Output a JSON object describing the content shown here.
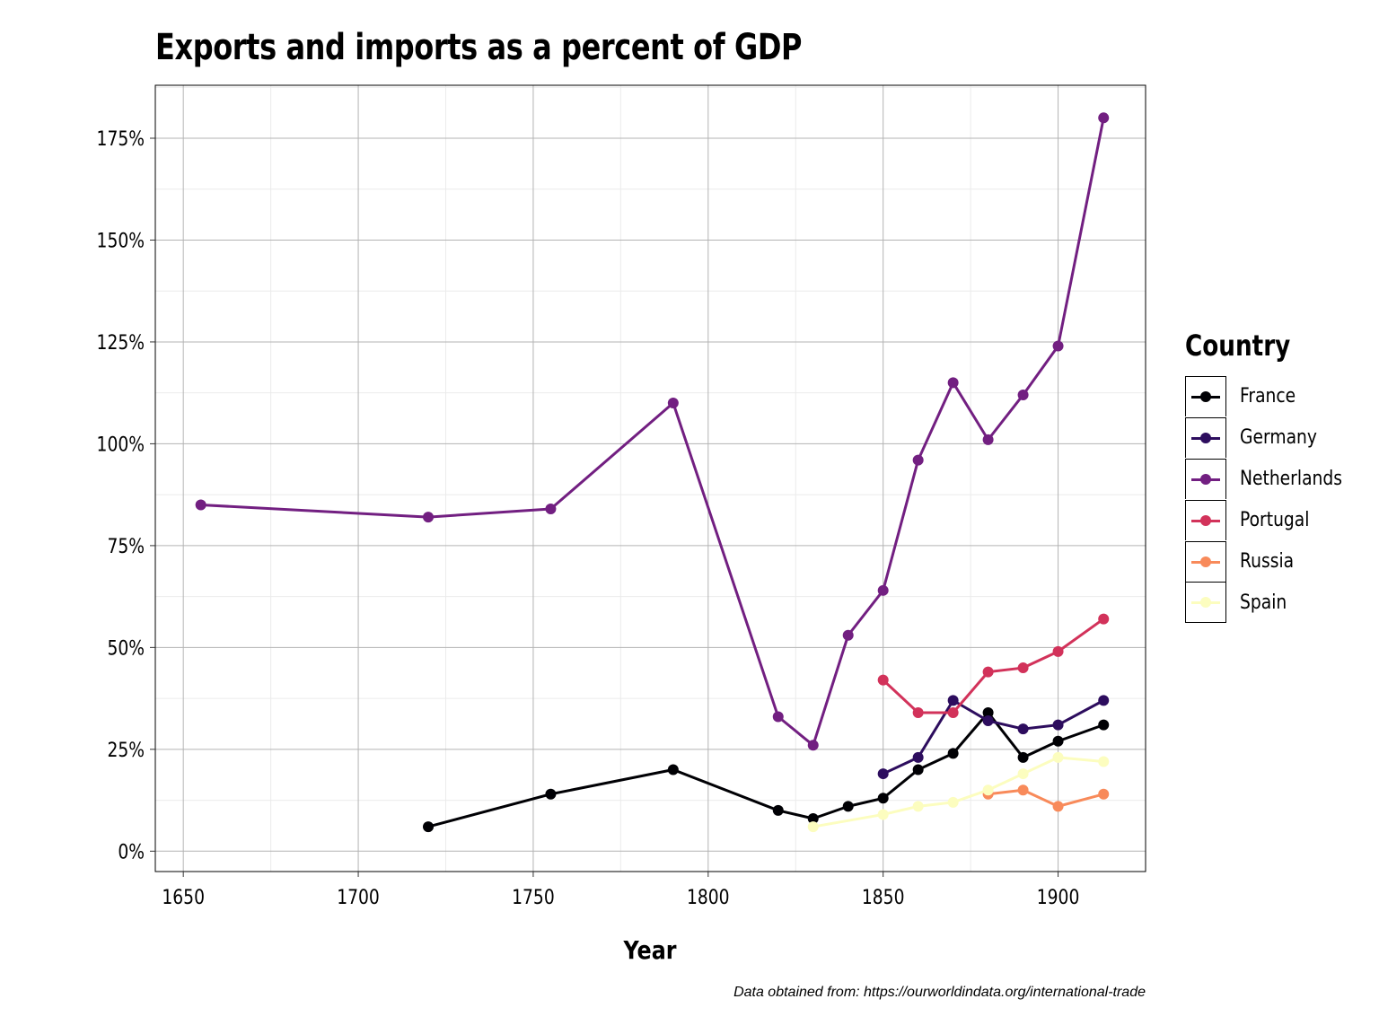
{
  "chart_data": {
    "type": "line",
    "title": "Exports and imports as a percent of GDP",
    "xlabel": "Year",
    "ylabel": "",
    "caption": "Data obtained from: https://ourworldindata.org/international-trade",
    "xlim": [
      1642,
      1925
    ],
    "ylim": [
      -5,
      188
    ],
    "x_ticks": [
      1650,
      1700,
      1750,
      1800,
      1850,
      1900
    ],
    "y_ticks": [
      0,
      25,
      50,
      75,
      100,
      125,
      150,
      175
    ],
    "y_tick_labels": [
      "0%",
      "25%",
      "50%",
      "75%",
      "100%",
      "125%",
      "150%",
      "175%"
    ],
    "grid": true,
    "legend": {
      "title": "Country",
      "position": "right"
    },
    "series": [
      {
        "name": "France",
        "color": "#000004",
        "x": [
          1720,
          1755,
          1790,
          1820,
          1830,
          1840,
          1850,
          1860,
          1870,
          1880,
          1890,
          1900,
          1913
        ],
        "y": [
          6,
          14,
          20,
          10,
          8,
          11,
          13,
          20,
          24,
          34,
          23,
          27,
          31
        ]
      },
      {
        "name": "Germany",
        "color": "#2d0d5e",
        "x": [
          1850,
          1860,
          1870,
          1880,
          1890,
          1900,
          1913
        ],
        "y": [
          19,
          23,
          37,
          32,
          30,
          31,
          37
        ]
      },
      {
        "name": "Netherlands",
        "color": "#721f81",
        "x": [
          1655,
          1720,
          1755,
          1790,
          1820,
          1830,
          1840,
          1850,
          1860,
          1870,
          1880,
          1890,
          1900,
          1913
        ],
        "y": [
          85,
          82,
          84,
          110,
          33,
          26,
          53,
          64,
          96,
          115,
          101,
          112,
          124,
          180
        ]
      },
      {
        "name": "Portugal",
        "color": "#d2325a",
        "x": [
          1850,
          1860,
          1870,
          1880,
          1890,
          1900,
          1913
        ],
        "y": [
          42,
          34,
          34,
          44,
          45,
          49,
          57
        ]
      },
      {
        "name": "Russia",
        "color": "#f88a5a",
        "x": [
          1880,
          1890,
          1900,
          1913
        ],
        "y": [
          14,
          15,
          11,
          14
        ]
      },
      {
        "name": "Spain",
        "color": "#fcfdbf",
        "x": [
          1830,
          1850,
          1860,
          1870,
          1880,
          1890,
          1900,
          1913
        ],
        "y": [
          6,
          9,
          11,
          12,
          15,
          19,
          23,
          22
        ]
      }
    ]
  }
}
